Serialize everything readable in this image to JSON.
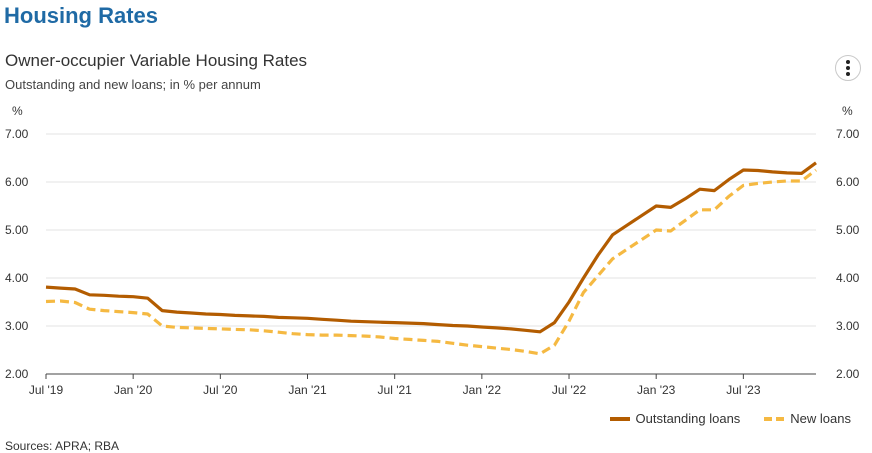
{
  "page": {
    "title": "Housing Rates",
    "sources": "Sources: APRA; RBA"
  },
  "chart_data": {
    "type": "line",
    "title": "Owner-occupier Variable Housing Rates",
    "subtitle": "Outstanding and new loans; in % per annum",
    "ylabel_left": "%",
    "ylabel_right": "%",
    "ylim": [
      2.0,
      7.0
    ],
    "yticks": [
      "2.00",
      "3.00",
      "4.00",
      "5.00",
      "6.00",
      "7.00"
    ],
    "xlim": [
      "2019-07",
      "2023-12"
    ],
    "xticks": [
      {
        "label": "Jul '19",
        "date": "2019-07"
      },
      {
        "label": "Jan '20",
        "date": "2020-01"
      },
      {
        "label": "Jul '20",
        "date": "2020-07"
      },
      {
        "label": "Jan '21",
        "date": "2021-01"
      },
      {
        "label": "Jul '21",
        "date": "2021-07"
      },
      {
        "label": "Jan '22",
        "date": "2022-01"
      },
      {
        "label": "Jul '22",
        "date": "2022-07"
      },
      {
        "label": "Jan '23",
        "date": "2023-01"
      },
      {
        "label": "Jul '23",
        "date": "2023-07"
      }
    ],
    "x": [
      "2019-07",
      "2019-08",
      "2019-09",
      "2019-10",
      "2019-11",
      "2019-12",
      "2020-01",
      "2020-02",
      "2020-03",
      "2020-04",
      "2020-05",
      "2020-06",
      "2020-07",
      "2020-08",
      "2020-09",
      "2020-10",
      "2020-11",
      "2020-12",
      "2021-01",
      "2021-02",
      "2021-03",
      "2021-04",
      "2021-05",
      "2021-06",
      "2021-07",
      "2021-08",
      "2021-09",
      "2021-10",
      "2021-11",
      "2021-12",
      "2022-01",
      "2022-02",
      "2022-03",
      "2022-04",
      "2022-05",
      "2022-06",
      "2022-07",
      "2022-08",
      "2022-09",
      "2022-10",
      "2022-11",
      "2022-12",
      "2023-01",
      "2023-02",
      "2023-03",
      "2023-04",
      "2023-05",
      "2023-06",
      "2023-07",
      "2023-08",
      "2023-09",
      "2023-10",
      "2023-11",
      "2023-12"
    ],
    "grid": true,
    "legend": "bottom-right",
    "series": [
      {
        "name": "Outstanding loans",
        "color": "#b35c00",
        "style": "solid",
        "values": [
          3.81,
          3.79,
          3.77,
          3.65,
          3.64,
          3.62,
          3.61,
          3.58,
          3.32,
          3.29,
          3.27,
          3.25,
          3.24,
          3.22,
          3.21,
          3.2,
          3.18,
          3.17,
          3.16,
          3.14,
          3.12,
          3.1,
          3.09,
          3.08,
          3.07,
          3.06,
          3.05,
          3.03,
          3.01,
          3.0,
          2.98,
          2.96,
          2.94,
          2.91,
          2.88,
          3.07,
          3.5,
          4.0,
          4.48,
          4.9,
          5.1,
          5.3,
          5.5,
          5.47,
          5.65,
          5.85,
          5.82,
          6.05,
          6.25,
          6.24,
          6.21,
          6.19,
          6.18,
          6.4
        ]
      },
      {
        "name": "New loans",
        "color": "#f5b942",
        "style": "dashed",
        "values": [
          3.51,
          3.52,
          3.49,
          3.35,
          3.32,
          3.3,
          3.28,
          3.25,
          3.0,
          2.97,
          2.96,
          2.95,
          2.94,
          2.93,
          2.92,
          2.9,
          2.87,
          2.84,
          2.82,
          2.81,
          2.81,
          2.8,
          2.79,
          2.77,
          2.74,
          2.72,
          2.7,
          2.68,
          2.64,
          2.6,
          2.57,
          2.54,
          2.51,
          2.47,
          2.42,
          2.6,
          3.1,
          3.7,
          4.05,
          4.4,
          4.6,
          4.8,
          5.0,
          4.98,
          5.2,
          5.42,
          5.42,
          5.7,
          5.93,
          5.97,
          6.0,
          6.02,
          6.02,
          6.25
        ]
      }
    ]
  }
}
